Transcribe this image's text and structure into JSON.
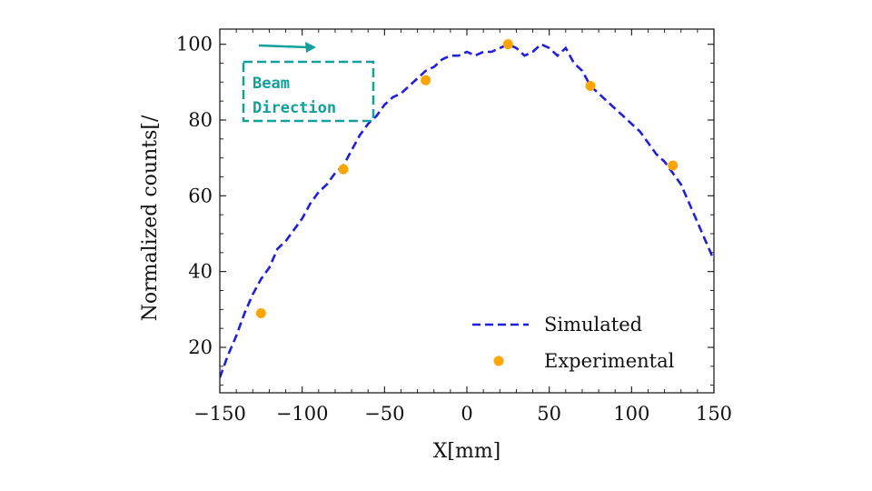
{
  "colors": {
    "simulated": "#1f1fdc",
    "experimental": "#ffa500",
    "annotation": "#12a19a",
    "axis": "#111111"
  },
  "chart_data": {
    "type": "line",
    "title": "",
    "xlabel": "X[mm]",
    "ylabel": "Normalized counts[/",
    "xlim": [
      -150,
      150
    ],
    "ylim": [
      8,
      104
    ],
    "xticks": [
      -150,
      -100,
      -50,
      0,
      50,
      100,
      150
    ],
    "xtick_labels": [
      "−150",
      "−100",
      "−50",
      "0",
      "50",
      "100",
      "150"
    ],
    "yticks": [
      20,
      40,
      60,
      80,
      100
    ],
    "ytick_labels": [
      "20",
      "40",
      "60",
      "80",
      "100"
    ],
    "grid": false,
    "legend_position": "bottom-right",
    "series": [
      {
        "name": "Simulated",
        "style": "dashed-line",
        "x": [
          -150,
          -145,
          -140,
          -135,
          -130,
          -125,
          -120,
          -115,
          -110,
          -105,
          -100,
          -95,
          -90,
          -85,
          -80,
          -75,
          -70,
          -65,
          -60,
          -55,
          -50,
          -45,
          -40,
          -35,
          -30,
          -25,
          -20,
          -15,
          -10,
          -5,
          0,
          5,
          10,
          15,
          20,
          25,
          30,
          35,
          40,
          45,
          50,
          55,
          60,
          65,
          70,
          75,
          80,
          85,
          90,
          95,
          100,
          105,
          110,
          115,
          120,
          125,
          130,
          135,
          140,
          145,
          150
        ],
        "y": [
          12,
          18,
          23,
          29,
          34,
          38,
          41,
          46,
          48,
          51,
          54,
          58,
          61,
          63,
          66,
          68,
          72,
          76,
          79,
          81,
          84,
          86,
          87,
          89,
          91,
          93,
          94,
          96,
          97,
          97,
          98,
          97,
          98,
          98,
          99,
          100,
          99,
          97,
          98,
          100,
          99,
          97,
          99,
          95,
          93,
          89,
          87,
          85,
          83,
          81,
          79,
          77,
          74,
          71,
          69,
          66,
          63,
          58,
          53,
          48,
          43
        ]
      },
      {
        "name": "Experimental",
        "style": "markers",
        "x": [
          -125,
          -75,
          -25,
          25,
          75,
          125
        ],
        "y": [
          29,
          67,
          90.5,
          100,
          89,
          68
        ]
      }
    ],
    "annotations": [
      {
        "lines": [
          "Beam",
          "Direction"
        ],
        "arrow": "right",
        "position": "top-left"
      }
    ]
  }
}
